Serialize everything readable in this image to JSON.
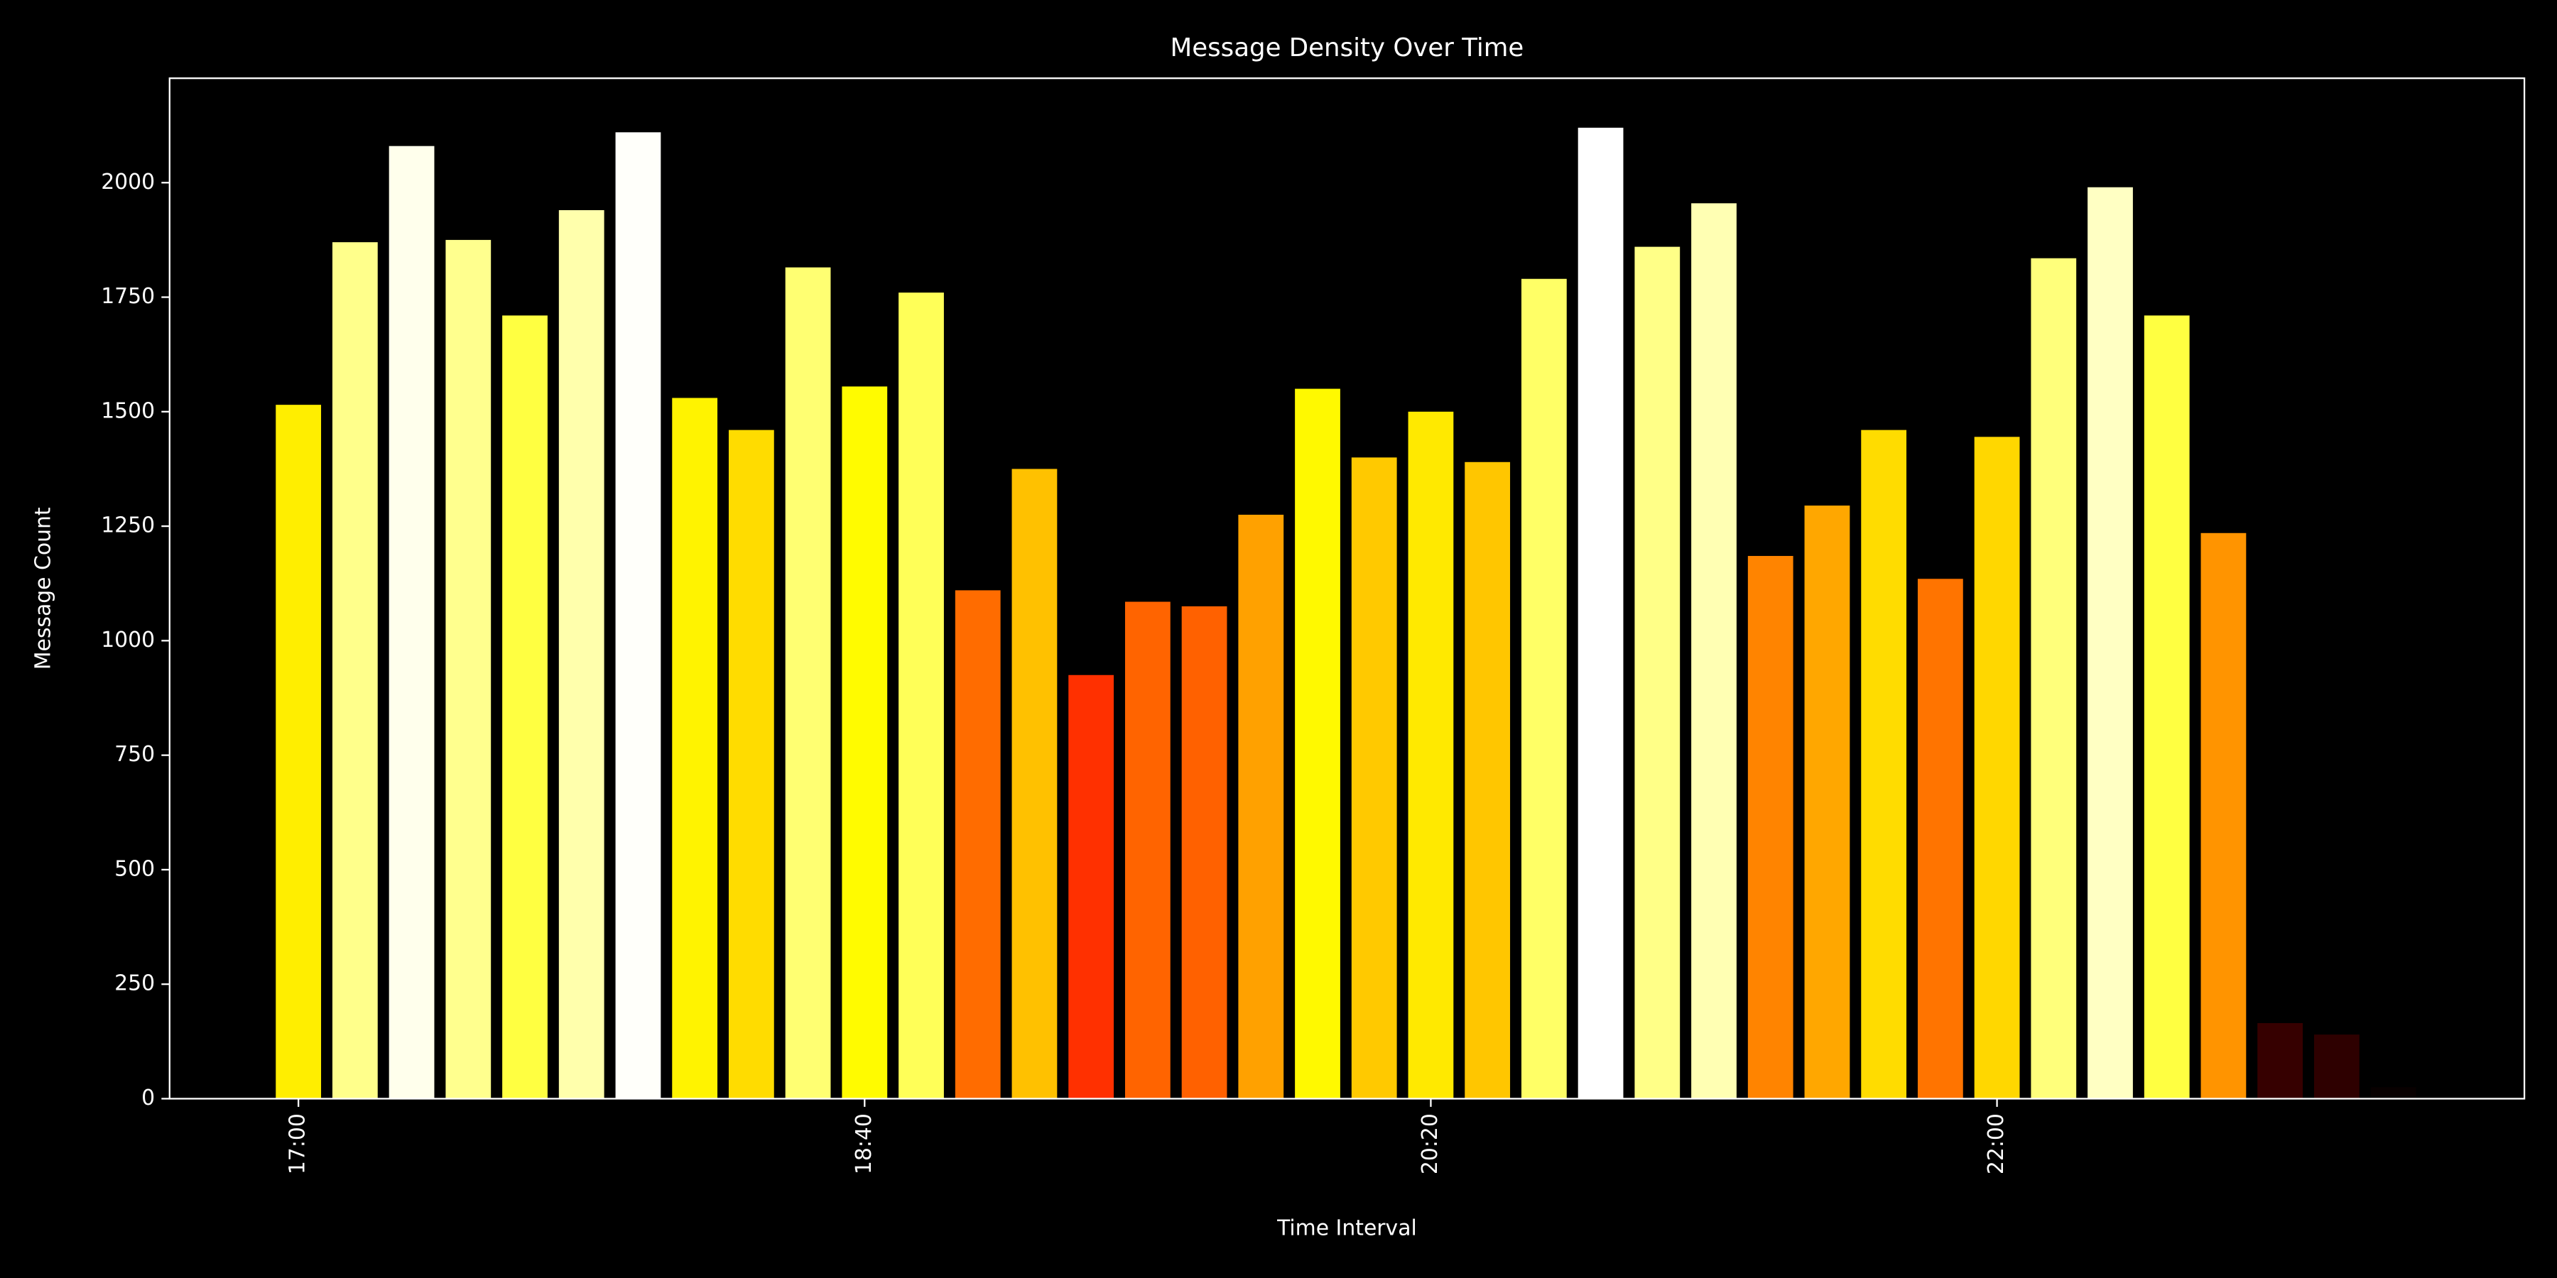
{
  "chart_data": {
    "type": "bar",
    "title": "Message Density Over Time",
    "xlabel": "Time Interval",
    "ylabel": "Message Count",
    "categories": [
      "17:00",
      null,
      null,
      null,
      null,
      null,
      null,
      null,
      null,
      null,
      "18:40",
      null,
      null,
      null,
      null,
      null,
      null,
      null,
      null,
      null,
      "20:20",
      null,
      null,
      null,
      null,
      null,
      null,
      null,
      null,
      null,
      "22:00",
      null,
      null,
      null,
      null,
      null,
      null,
      null
    ],
    "values": [
      1515,
      1870,
      2080,
      1875,
      1710,
      1940,
      2110,
      1530,
      1460,
      1815,
      1555,
      1760,
      1110,
      1375,
      925,
      1085,
      1075,
      1275,
      1550,
      1400,
      1500,
      1390,
      1790,
      2120,
      1860,
      1955,
      1185,
      1295,
      1460,
      1135,
      1445,
      1835,
      1990,
      1710,
      1235,
      165,
      140,
      25
    ],
    "colormap": "hot",
    "ylim": [
      0,
      2228
    ],
    "yticks": [
      0,
      250,
      500,
      750,
      1000,
      1250,
      1500,
      1750,
      2000
    ]
  }
}
